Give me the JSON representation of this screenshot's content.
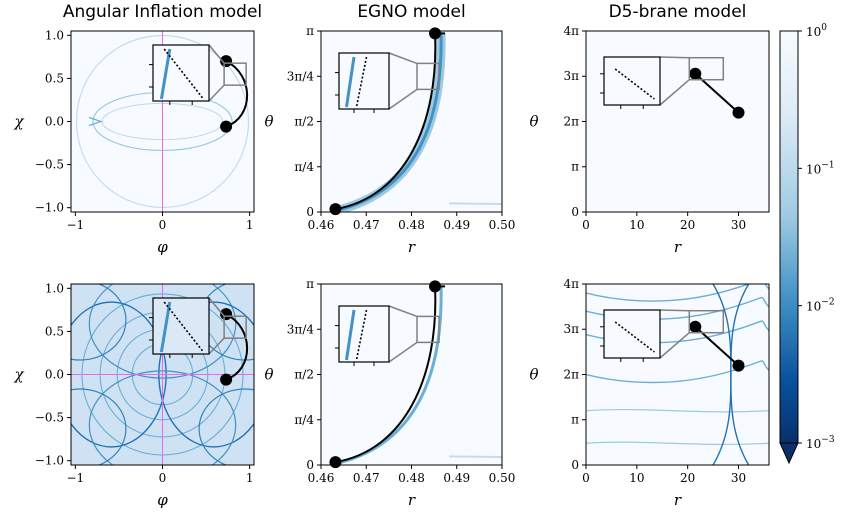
{
  "colors": {
    "map_high": "#f7fbff",
    "map_mid": "#6baed6",
    "map_low": "#08306b",
    "curve": "#000000",
    "guide": "#ee66ee",
    "inset_box": "#808080"
  },
  "chart_data": [
    {
      "type": "heatmap",
      "panel": "top-left",
      "title": "Angular Inflation model",
      "xlabel": "φ",
      "ylabel": "χ",
      "xlim": [
        -1.05,
        1.05
      ],
      "ylim": [
        -1.05,
        1.05
      ],
      "xticks": [
        {
          "v": -1,
          "label": "−1"
        },
        {
          "v": 0,
          "label": "0"
        },
        {
          "v": 1,
          "label": "1"
        }
      ],
      "yticks": [
        {
          "v": -1.0,
          "label": "−1.0"
        },
        {
          "v": -0.5,
          "label": "−0.5"
        },
        {
          "v": 0.0,
          "label": "0.0"
        },
        {
          "v": 0.5,
          "label": "0.5"
        },
        {
          "v": 1.0,
          "label": "1.0"
        }
      ],
      "trajectory": {
        "start": [
          0.73,
          -0.06
        ],
        "end": [
          0.73,
          0.7
        ]
      },
      "guides": {
        "vertical_x": 0
      }
    },
    {
      "type": "heatmap",
      "panel": "top-middle",
      "title": "EGNO model",
      "xlabel": "r",
      "ylabel": "θ",
      "xlim": [
        0.46,
        0.5
      ],
      "ylim": [
        0,
        3.1416
      ],
      "xticks": [
        {
          "v": 0.46,
          "label": "0.46"
        },
        {
          "v": 0.47,
          "label": "0.47"
        },
        {
          "v": 0.48,
          "label": "0.48"
        },
        {
          "v": 0.49,
          "label": "0.49"
        },
        {
          "v": 0.5,
          "label": "0.50"
        }
      ],
      "yticks": [
        {
          "v": 0,
          "label": "0"
        },
        {
          "v": 0.7854,
          "label": "π/4"
        },
        {
          "v": 1.5708,
          "label": "π/2"
        },
        {
          "v": 2.3562,
          "label": "3π/4"
        },
        {
          "v": 3.1416,
          "label": "π"
        }
      ],
      "trajectory": {
        "start": [
          0.4632,
          0.05
        ],
        "end": [
          0.4852,
          3.1
        ]
      }
    },
    {
      "type": "heatmap",
      "panel": "top-right",
      "title": "D5-brane model",
      "xlabel": "r",
      "ylabel": "θ",
      "xlim": [
        0,
        36
      ],
      "ylim": [
        0,
        12.566
      ],
      "xticks": [
        {
          "v": 0,
          "label": "0"
        },
        {
          "v": 10,
          "label": "10"
        },
        {
          "v": 20,
          "label": "20"
        },
        {
          "v": 30,
          "label": "30"
        }
      ],
      "yticks": [
        {
          "v": 0,
          "label": "0"
        },
        {
          "v": 3.1416,
          "label": "π"
        },
        {
          "v": 6.2832,
          "label": "2π"
        },
        {
          "v": 9.4248,
          "label": "3π"
        },
        {
          "v": 12.566,
          "label": "4π"
        }
      ],
      "trajectory": {
        "start": [
          30,
          6.9
        ],
        "end": [
          21.5,
          9.6
        ]
      }
    },
    {
      "type": "heatmap",
      "panel": "bottom-left",
      "title": "",
      "xlabel": "φ",
      "ylabel": "χ",
      "xlim": [
        -1.05,
        1.05
      ],
      "ylim": [
        -1.05,
        1.05
      ],
      "xticks": [
        {
          "v": -1,
          "label": "−1"
        },
        {
          "v": 0,
          "label": "0"
        },
        {
          "v": 1,
          "label": "1"
        }
      ],
      "yticks": [
        {
          "v": -1.0,
          "label": "−1.0"
        },
        {
          "v": -0.5,
          "label": "−0.5"
        },
        {
          "v": 0.0,
          "label": "0.0"
        },
        {
          "v": 0.5,
          "label": "0.5"
        },
        {
          "v": 1.0,
          "label": "1.0"
        }
      ],
      "trajectory": {
        "start": [
          0.73,
          -0.06
        ],
        "end": [
          0.73,
          0.7
        ]
      },
      "guides": {
        "vertical_x": 0,
        "horizontal_y": 0
      }
    },
    {
      "type": "heatmap",
      "panel": "bottom-middle",
      "title": "",
      "xlabel": "r",
      "ylabel": "θ",
      "xlim": [
        0.46,
        0.5
      ],
      "ylim": [
        0,
        3.1416
      ],
      "xticks": [
        {
          "v": 0.46,
          "label": "0.46"
        },
        {
          "v": 0.47,
          "label": "0.47"
        },
        {
          "v": 0.48,
          "label": "0.48"
        },
        {
          "v": 0.49,
          "label": "0.49"
        },
        {
          "v": 0.5,
          "label": "0.50"
        }
      ],
      "yticks": [
        {
          "v": 0,
          "label": "0"
        },
        {
          "v": 0.7854,
          "label": "π/4"
        },
        {
          "v": 1.5708,
          "label": "π/2"
        },
        {
          "v": 2.3562,
          "label": "3π/4"
        },
        {
          "v": 3.1416,
          "label": "π"
        }
      ],
      "trajectory": {
        "start": [
          0.4632,
          0.05
        ],
        "end": [
          0.4852,
          3.1
        ]
      }
    },
    {
      "type": "heatmap",
      "panel": "bottom-right",
      "title": "",
      "xlabel": "r",
      "ylabel": "θ",
      "xlim": [
        0,
        36
      ],
      "ylim": [
        0,
        12.566
      ],
      "xticks": [
        {
          "v": 0,
          "label": "0"
        },
        {
          "v": 10,
          "label": "10"
        },
        {
          "v": 20,
          "label": "20"
        },
        {
          "v": 30,
          "label": "30"
        }
      ],
      "yticks": [
        {
          "v": 0,
          "label": "0"
        },
        {
          "v": 3.1416,
          "label": "π"
        },
        {
          "v": 6.2832,
          "label": "2π"
        },
        {
          "v": 9.4248,
          "label": "3π"
        },
        {
          "v": 12.566,
          "label": "4π"
        }
      ],
      "trajectory": {
        "start": [
          30,
          6.9
        ],
        "end": [
          21.5,
          9.6
        ]
      }
    }
  ],
  "colorbar": {
    "scale": "log",
    "range": [
      0.001,
      1
    ],
    "ticks": [
      {
        "exp": 0,
        "base": "10",
        "power": "0"
      },
      {
        "exp": -1,
        "base": "10",
        "power": "−1"
      },
      {
        "exp": -2,
        "base": "10",
        "power": "−2"
      },
      {
        "exp": -3,
        "base": "10",
        "power": "−3"
      }
    ]
  }
}
